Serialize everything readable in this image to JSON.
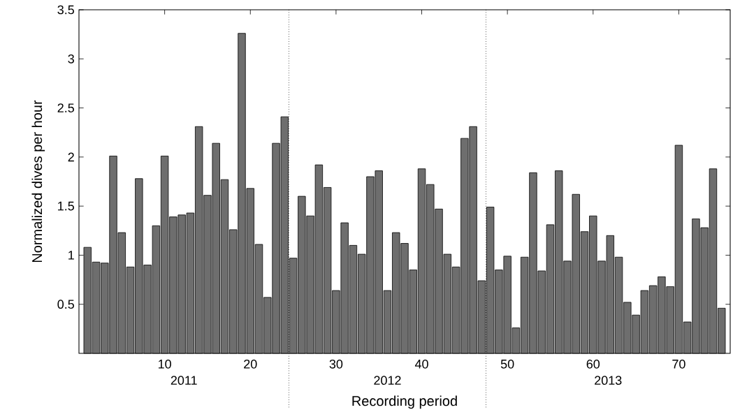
{
  "chart_data": {
    "type": "bar",
    "xlabel": "Recording period",
    "ylabel": "Normalized dives per hour",
    "x": [
      1,
      2,
      3,
      4,
      5,
      6,
      7,
      8,
      9,
      10,
      11,
      12,
      13,
      14,
      15,
      16,
      17,
      18,
      19,
      20,
      21,
      22,
      23,
      24,
      25,
      26,
      27,
      28,
      29,
      30,
      31,
      32,
      33,
      34,
      35,
      36,
      37,
      38,
      39,
      40,
      41,
      42,
      43,
      44,
      45,
      46,
      47,
      48,
      49,
      50,
      51,
      52,
      53,
      54,
      55,
      56,
      57,
      58,
      59,
      60,
      61,
      62,
      63,
      64,
      65,
      66,
      67,
      68,
      69,
      70,
      71,
      72,
      73,
      74,
      75
    ],
    "values": [
      1.08,
      0.93,
      0.92,
      2.01,
      1.23,
      0.88,
      1.78,
      0.9,
      1.3,
      2.01,
      1.39,
      1.41,
      1.43,
      2.31,
      1.61,
      2.14,
      1.77,
      1.26,
      3.26,
      1.68,
      1.11,
      0.57,
      2.14,
      2.41,
      0.97,
      1.6,
      1.4,
      1.92,
      1.69,
      0.64,
      1.33,
      1.1,
      1.01,
      1.8,
      1.86,
      0.64,
      1.23,
      1.12,
      0.85,
      1.88,
      1.72,
      1.47,
      1.01,
      0.88,
      2.19,
      2.31,
      0.74,
      1.49,
      0.85,
      0.99,
      0.26,
      0.98,
      1.84,
      0.84,
      1.31,
      1.86,
      0.94,
      1.62,
      1.24,
      1.4,
      0.94,
      1.2,
      0.98,
      0.52,
      0.39,
      0.64,
      0.69,
      0.78,
      0.68,
      2.12,
      0.32,
      1.37,
      1.28,
      1.88,
      0.46
    ],
    "color": "#6e6e6e",
    "xlim": [
      0,
      76
    ],
    "xticks": [
      10,
      20,
      30,
      40,
      50,
      60,
      70
    ],
    "ylim": [
      0,
      3.5
    ],
    "yticks": [
      0.5,
      1,
      1.5,
      2,
      2.5,
      3,
      3.5
    ],
    "ref_lines": [
      {
        "axis": "x",
        "value": 24.5,
        "color": "#000000",
        "line_style": "dotted"
      },
      {
        "axis": "x",
        "value": 47.5,
        "color": "#000000",
        "line_style": "dotted"
      }
    ],
    "annotations": [
      "2011",
      "2012",
      "2013"
    ]
  }
}
